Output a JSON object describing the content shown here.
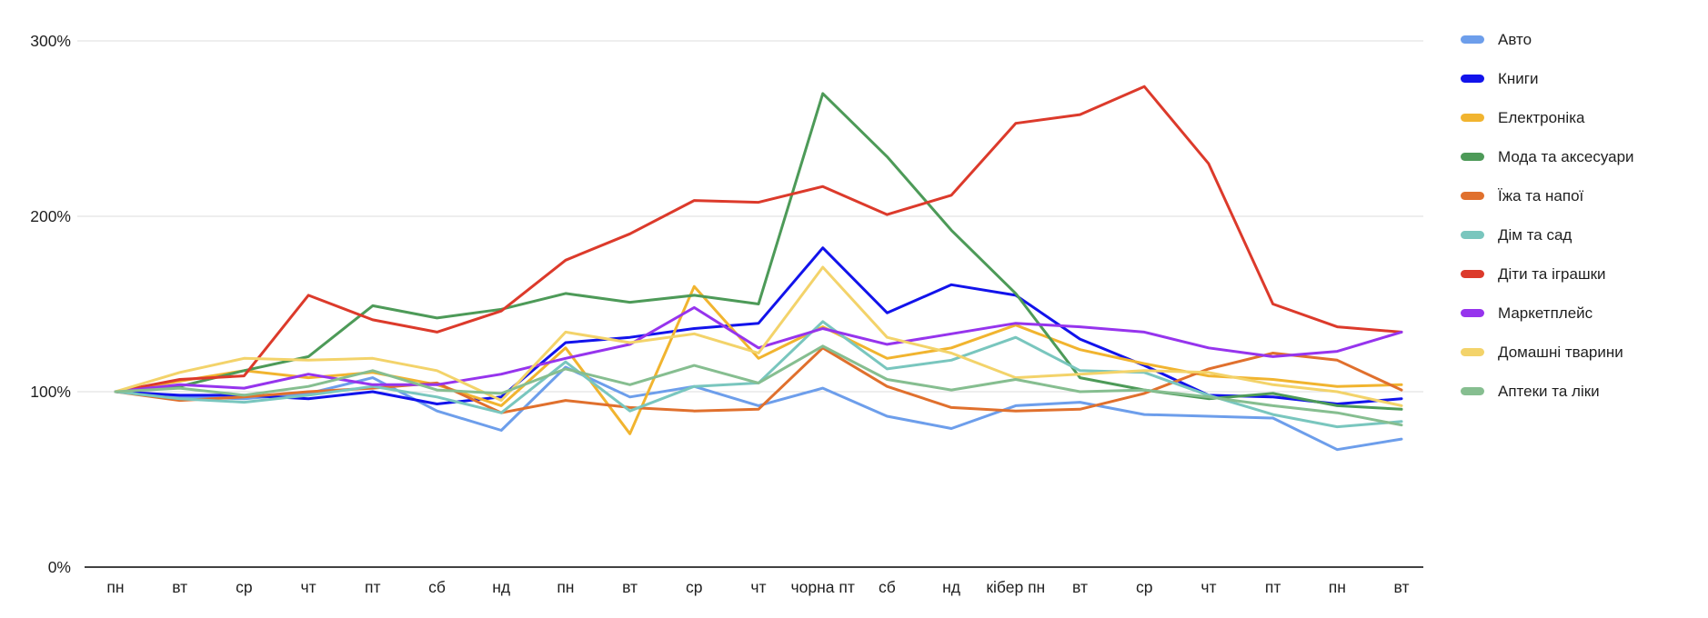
{
  "chart_data": {
    "type": "line",
    "title": "",
    "xlabel": "",
    "ylabel": "",
    "unit": "%",
    "grid": true,
    "legend_position": "right",
    "ylim": [
      0,
      300
    ],
    "y_ticks": [
      0,
      100,
      200,
      300
    ],
    "y_tick_labels": [
      "0%",
      "100%",
      "200%",
      "300%"
    ],
    "categories": [
      "пн",
      "вт",
      "ср",
      "чт",
      "пт",
      "сб",
      "нд",
      "пн",
      "вт",
      "ср",
      "чт",
      "чорна пт",
      "сб",
      "нд",
      "кібер пн",
      "вт",
      "ср",
      "чт",
      "пт",
      "пн",
      "вт"
    ],
    "series": [
      {
        "name": "Авто",
        "color": "#6d9eeb",
        "values": [
          100,
          97,
          96,
          99,
          108,
          89,
          78,
          114,
          97,
          103,
          92,
          102,
          86,
          79,
          92,
          94,
          87,
          86,
          85,
          67,
          73
        ]
      },
      {
        "name": "Книги",
        "color": "#1213eb",
        "values": [
          100,
          98,
          98,
          96,
          100,
          93,
          97,
          128,
          131,
          136,
          139,
          182,
          145,
          161,
          155,
          130,
          115,
          98,
          97,
          93,
          96
        ]
      },
      {
        "name": "Електроніка",
        "color": "#f1b42f",
        "values": [
          100,
          106,
          112,
          108,
          111,
          104,
          92,
          125,
          76,
          160,
          119,
          137,
          119,
          125,
          138,
          124,
          116,
          109,
          107,
          103,
          104
        ]
      },
      {
        "name": "Мода та аксесуари",
        "color": "#4d9a58",
        "values": [
          100,
          103,
          112,
          120,
          149,
          142,
          147,
          156,
          151,
          155,
          150,
          270,
          234,
          192,
          156,
          108,
          101,
          96,
          99,
          92,
          90
        ]
      },
      {
        "name": "Їжа та напої",
        "color": "#e0702d",
        "values": [
          100,
          95,
          97,
          100,
          102,
          105,
          88,
          95,
          91,
          89,
          90,
          125,
          103,
          91,
          89,
          90,
          99,
          113,
          122,
          118,
          101
        ]
      },
      {
        "name": "Дім та сад",
        "color": "#79c6be",
        "values": [
          100,
          96,
          94,
          98,
          103,
          97,
          88,
          117,
          89,
          103,
          105,
          140,
          113,
          118,
          131,
          112,
          111,
          98,
          87,
          80,
          83
        ]
      },
      {
        "name": "Діти та іграшки",
        "color": "#dc3a2b",
        "values": [
          100,
          107,
          109,
          155,
          141,
          134,
          146,
          175,
          190,
          209,
          208,
          217,
          201,
          212,
          253,
          258,
          274,
          230,
          150,
          137,
          134
        ]
      },
      {
        "name": "Маркетплейс",
        "color": "#9634ed",
        "values": [
          100,
          104,
          102,
          110,
          104,
          104,
          110,
          119,
          127,
          148,
          125,
          136,
          127,
          133,
          139,
          137,
          134,
          125,
          120,
          123,
          134
        ]
      },
      {
        "name": "Домашні тварини",
        "color": "#f3d36a",
        "values": [
          100,
          111,
          119,
          118,
          119,
          112,
          95,
          134,
          128,
          133,
          122,
          171,
          131,
          122,
          108,
          110,
          112,
          111,
          104,
          100,
          92
        ]
      },
      {
        "name": "Аптеки та ліки",
        "color": "#86be90",
        "values": [
          100,
          102,
          98,
          103,
          112,
          101,
          99,
          113,
          104,
          115,
          105,
          126,
          107,
          101,
          107,
          100,
          101,
          97,
          92,
          88,
          81
        ]
      }
    ],
    "colors": {
      "gridline": "#dcdcdc",
      "axis_line": "#424242",
      "tick_text": "#1f1f1f",
      "background": "#ffffff"
    }
  }
}
